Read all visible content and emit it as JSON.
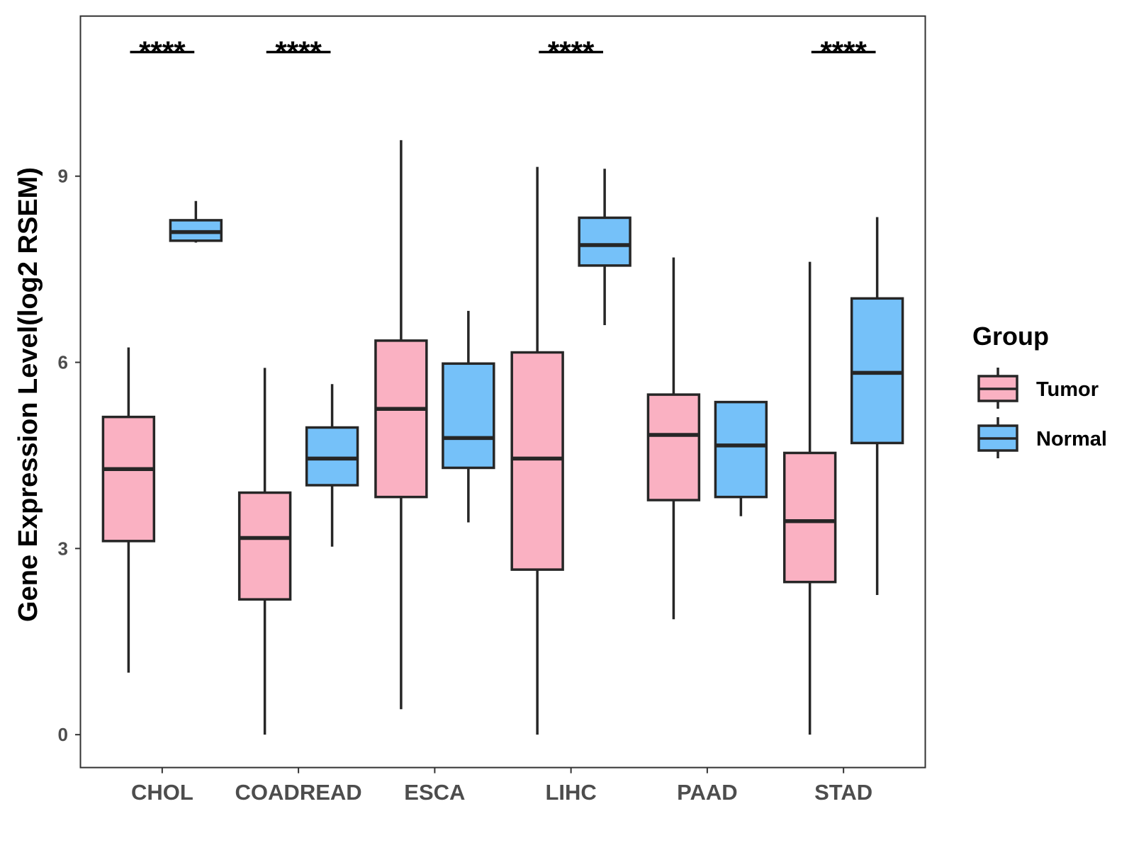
{
  "chart_data": {
    "type": "box",
    "ylabel": "Gene Expression Level(log2 RSEM)",
    "ylim": [
      -0.53,
      11.58
    ],
    "yticks": [
      0,
      3,
      6,
      9
    ],
    "grid": false,
    "categories": [
      "CHOL",
      "COADREAD",
      "ESCA",
      "LIHC",
      "PAAD",
      "STAD"
    ],
    "series": [
      {
        "name": "Tumor",
        "color": "#FAB1C2",
        "stats": [
          {
            "min": 1.0,
            "q1": 3.12,
            "median": 4.28,
            "q3": 5.12,
            "max": 6.24
          },
          {
            "min": 0.0,
            "q1": 2.18,
            "median": 3.17,
            "q3": 3.9,
            "max": 5.91
          },
          {
            "min": 0.41,
            "q1": 3.83,
            "median": 5.25,
            "q3": 6.35,
            "max": 9.58
          },
          {
            "min": 0.0,
            "q1": 2.66,
            "median": 4.45,
            "q3": 6.16,
            "max": 9.15
          },
          {
            "min": 1.86,
            "q1": 3.78,
            "median": 4.83,
            "q3": 5.48,
            "max": 7.69
          },
          {
            "min": 0.0,
            "q1": 2.46,
            "median": 3.44,
            "q3": 4.54,
            "max": 7.62
          }
        ]
      },
      {
        "name": "Normal",
        "color": "#75C1F9",
        "stats": [
          {
            "min": 7.93,
            "q1": 7.96,
            "median": 8.1,
            "q3": 8.29,
            "max": 8.6
          },
          {
            "min": 3.03,
            "q1": 4.02,
            "median": 4.45,
            "q3": 4.95,
            "max": 5.65
          },
          {
            "min": 3.42,
            "q1": 4.3,
            "median": 4.78,
            "q3": 5.98,
            "max": 6.83
          },
          {
            "min": 6.6,
            "q1": 7.56,
            "median": 7.89,
            "q3": 8.33,
            "max": 9.12
          },
          {
            "min": 3.52,
            "q1": 3.83,
            "median": 4.66,
            "q3": 5.36,
            "max": 5.36
          },
          {
            "min": 2.25,
            "q1": 4.7,
            "median": 5.83,
            "q3": 7.03,
            "max": 8.34
          }
        ]
      }
    ],
    "significance": [
      {
        "category": "CHOL",
        "label": "****",
        "y": 11.0
      },
      {
        "category": "COADREAD",
        "label": "****",
        "y": 11.0
      },
      {
        "category": "LIHC",
        "label": "****",
        "y": 11.0
      },
      {
        "category": "STAD",
        "label": "****",
        "y": 11.0
      }
    ],
    "legend": {
      "title": "Group",
      "position": "right"
    }
  }
}
